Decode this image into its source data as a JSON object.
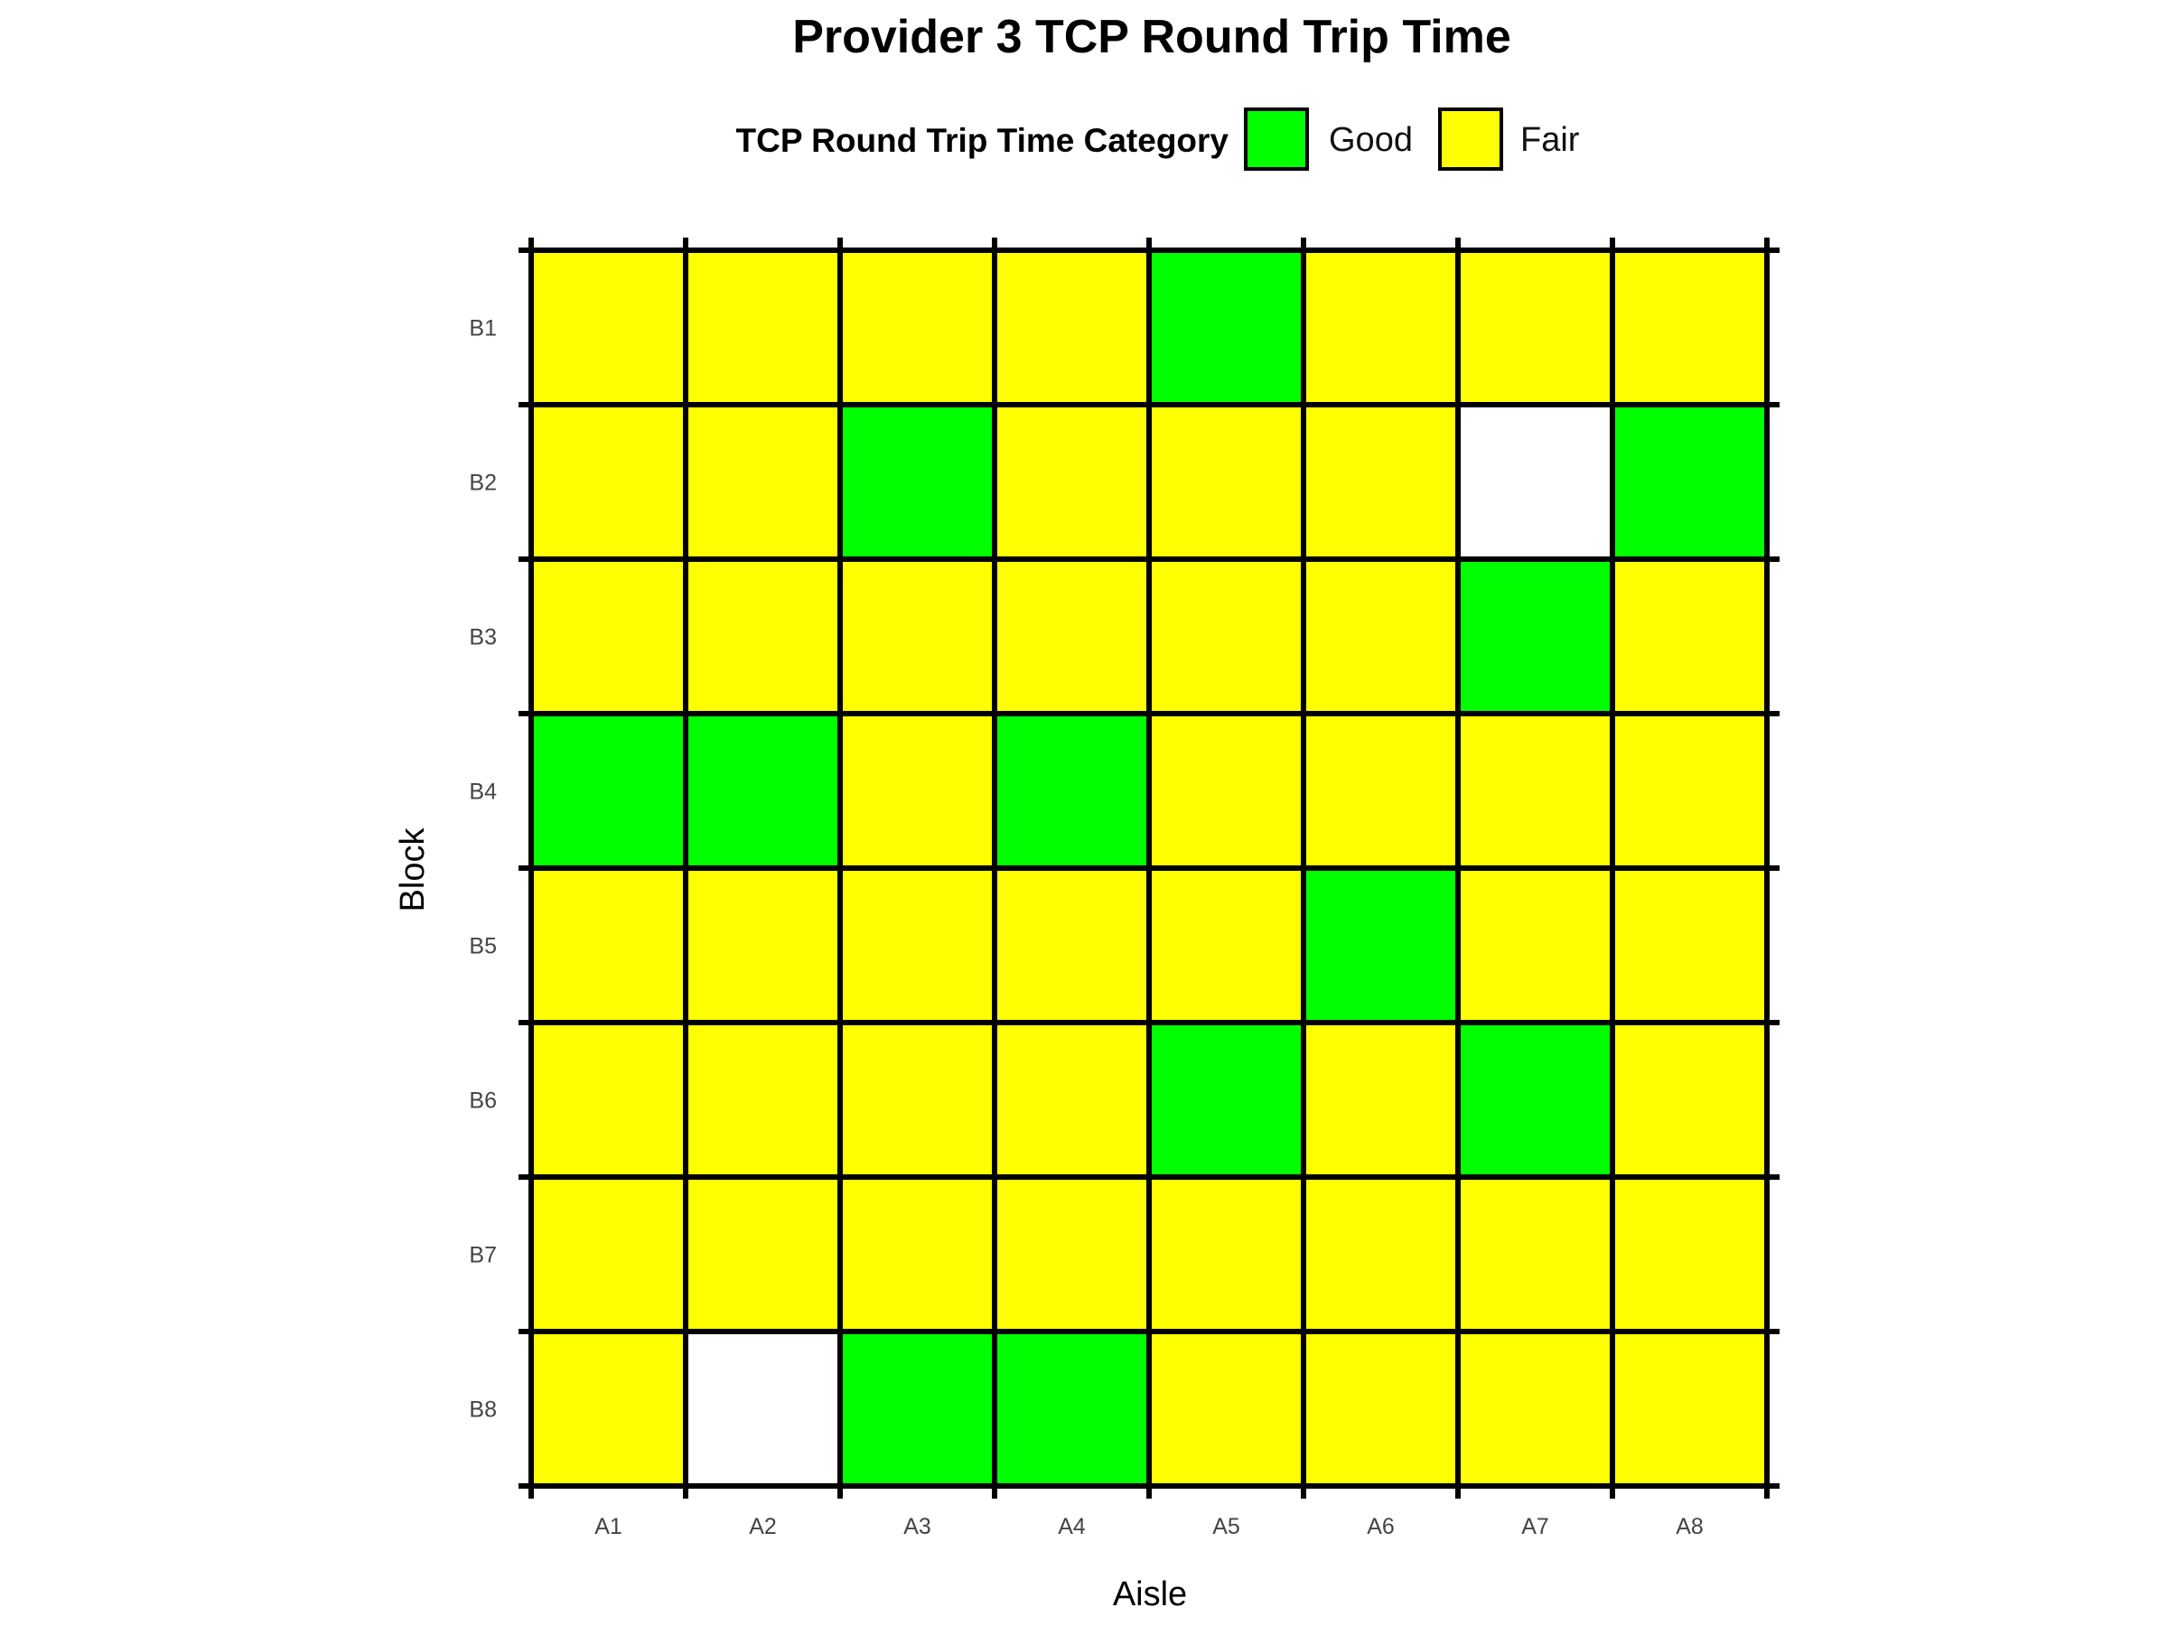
{
  "chart_data": {
    "type": "heatmap",
    "title": "Provider 3 TCP Round Trip Time",
    "xlabel": "Aisle",
    "ylabel": "Block",
    "legend": {
      "title": "TCP Round Trip Time Category",
      "placement": "top",
      "entries": [
        {
          "label": "Good",
          "color": "#00ff00"
        },
        {
          "label": "Fair",
          "color": "#ffff00"
        }
      ]
    },
    "x_categories": [
      "A1",
      "A2",
      "A3",
      "A4",
      "A5",
      "A6",
      "A7",
      "A8"
    ],
    "y_categories": [
      "B1",
      "B2",
      "B3",
      "B4",
      "B5",
      "B6",
      "B7",
      "B8"
    ],
    "missing_color": "#ffffff",
    "grid_color": "#000000",
    "cells": [
      [
        "Fair",
        "Fair",
        "Fair",
        "Fair",
        "Good",
        "Fair",
        "Fair",
        "Fair"
      ],
      [
        "Fair",
        "Fair",
        "Good",
        "Fair",
        "Fair",
        "Fair",
        null,
        "Good"
      ],
      [
        "Fair",
        "Fair",
        "Fair",
        "Fair",
        "Fair",
        "Fair",
        "Good",
        "Fair"
      ],
      [
        "Good",
        "Good",
        "Fair",
        "Good",
        "Fair",
        "Fair",
        "Fair",
        "Fair"
      ],
      [
        "Fair",
        "Fair",
        "Fair",
        "Fair",
        "Fair",
        "Good",
        "Fair",
        "Fair"
      ],
      [
        "Fair",
        "Fair",
        "Fair",
        "Fair",
        "Good",
        "Fair",
        "Good",
        "Fair"
      ],
      [
        "Fair",
        "Fair",
        "Fair",
        "Fair",
        "Fair",
        "Fair",
        "Fair",
        "Fair"
      ],
      [
        "Fair",
        null,
        "Good",
        "Good",
        "Fair",
        "Fair",
        "Fair",
        "Fair"
      ]
    ]
  }
}
